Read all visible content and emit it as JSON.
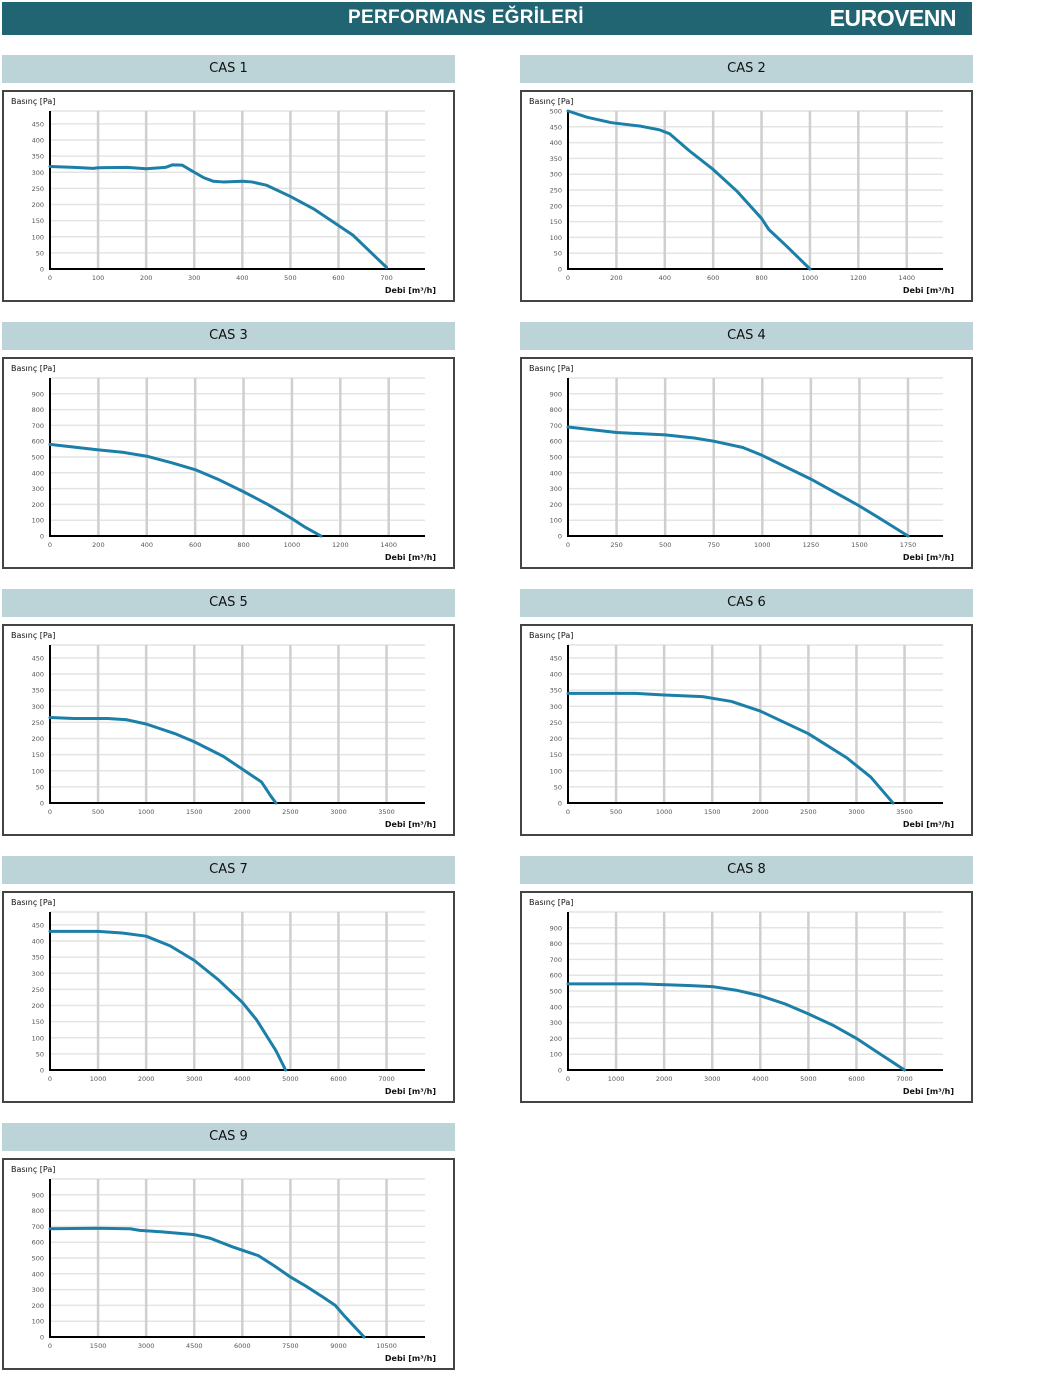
{
  "header": {
    "title": "PERFORMANS EĞRİLERİ",
    "logo": "EUROVENN",
    "bg_color": "#216573"
  },
  "curve_color": "#1b7fa8",
  "chart_data": [
    {
      "type": "line",
      "title": "CAS 1",
      "ylabel": "Basınç [Pa]",
      "xlabel": "Debi [m³/h]",
      "yticks": [
        0,
        50,
        100,
        150,
        200,
        250,
        300,
        350,
        400,
        450
      ],
      "ylim": [
        0,
        490
      ],
      "xticks": [
        0,
        100,
        200,
        300,
        400,
        500,
        600,
        700
      ],
      "xlim": [
        0,
        780
      ],
      "grid": true,
      "points": [
        [
          0,
          318
        ],
        [
          50,
          315
        ],
        [
          90,
          312
        ],
        [
          100,
          314
        ],
        [
          160,
          315
        ],
        [
          200,
          311
        ],
        [
          240,
          315
        ],
        [
          255,
          323
        ],
        [
          275,
          322
        ],
        [
          300,
          300
        ],
        [
          320,
          283
        ],
        [
          340,
          272
        ],
        [
          360,
          270
        ],
        [
          400,
          272
        ],
        [
          420,
          270
        ],
        [
          450,
          260
        ],
        [
          500,
          225
        ],
        [
          550,
          185
        ],
        [
          600,
          135
        ],
        [
          630,
          105
        ],
        [
          700,
          5
        ]
      ]
    },
    {
      "type": "line",
      "title": "CAS 2",
      "ylabel": "Basınç [Pa]",
      "xlabel": "Debi [m³/h]",
      "yticks": [
        0,
        50,
        100,
        150,
        200,
        250,
        300,
        350,
        400,
        450,
        500
      ],
      "ylim": [
        0,
        500
      ],
      "xticks": [
        0,
        200,
        400,
        600,
        800,
        1000,
        1200,
        1400
      ],
      "xlim": [
        0,
        1550
      ],
      "grid": true,
      "points": [
        [
          0,
          500
        ],
        [
          80,
          480
        ],
        [
          180,
          463
        ],
        [
          300,
          452
        ],
        [
          380,
          440
        ],
        [
          420,
          428
        ],
        [
          500,
          375
        ],
        [
          600,
          315
        ],
        [
          700,
          245
        ],
        [
          800,
          160
        ],
        [
          830,
          125
        ],
        [
          900,
          75
        ],
        [
          1000,
          0
        ]
      ]
    },
    {
      "type": "line",
      "title": "CAS 3",
      "ylabel": "Basınç [Pa]",
      "xlabel": "Debi [m³/h]",
      "yticks": [
        0,
        100,
        200,
        300,
        400,
        500,
        600,
        700,
        800,
        900
      ],
      "ylim": [
        0,
        1000
      ],
      "xticks": [
        0,
        200,
        400,
        600,
        800,
        1000,
        1200,
        1400
      ],
      "xlim": [
        0,
        1550
      ],
      "grid": true,
      "points": [
        [
          0,
          580
        ],
        [
          200,
          545
        ],
        [
          300,
          530
        ],
        [
          400,
          505
        ],
        [
          500,
          465
        ],
        [
          600,
          420
        ],
        [
          700,
          355
        ],
        [
          800,
          280
        ],
        [
          900,
          200
        ],
        [
          1000,
          110
        ],
        [
          1050,
          60
        ],
        [
          1120,
          0
        ]
      ]
    },
    {
      "type": "line",
      "title": "CAS 4",
      "ylabel": "Basınç [Pa]",
      "xlabel": "Debi [m³/h]",
      "yticks": [
        0,
        100,
        200,
        300,
        400,
        500,
        600,
        700,
        800,
        900
      ],
      "ylim": [
        0,
        1000
      ],
      "xticks": [
        0,
        250,
        500,
        750,
        1000,
        1250,
        1500,
        1750
      ],
      "xlim": [
        0,
        1930
      ],
      "grid": true,
      "points": [
        [
          0,
          690
        ],
        [
          250,
          655
        ],
        [
          500,
          640
        ],
        [
          650,
          620
        ],
        [
          750,
          600
        ],
        [
          900,
          560
        ],
        [
          1000,
          510
        ],
        [
          1250,
          360
        ],
        [
          1500,
          190
        ],
        [
          1600,
          115
        ],
        [
          1750,
          0
        ]
      ]
    },
    {
      "type": "line",
      "title": "CAS 5",
      "ylabel": "Basınç [Pa]",
      "xlabel": "Debi [m³/h]",
      "yticks": [
        0,
        50,
        100,
        150,
        200,
        250,
        300,
        350,
        400,
        450
      ],
      "ylim": [
        0,
        490
      ],
      "xticks": [
        0,
        500,
        1000,
        1500,
        2000,
        2500,
        3000,
        3500
      ],
      "xlim": [
        0,
        3900
      ],
      "grid": true,
      "points": [
        [
          0,
          265
        ],
        [
          250,
          262
        ],
        [
          600,
          262
        ],
        [
          800,
          258
        ],
        [
          1000,
          245
        ],
        [
          1300,
          215
        ],
        [
          1500,
          190
        ],
        [
          1800,
          145
        ],
        [
          2000,
          105
        ],
        [
          2200,
          65
        ],
        [
          2300,
          20
        ],
        [
          2350,
          0
        ]
      ]
    },
    {
      "type": "line",
      "title": "CAS 6",
      "ylabel": "Basınç [Pa]",
      "xlabel": "Debi [m³/h]",
      "yticks": [
        0,
        50,
        100,
        150,
        200,
        250,
        300,
        350,
        400,
        450
      ],
      "ylim": [
        0,
        490
      ],
      "xticks": [
        0,
        500,
        1000,
        1500,
        2000,
        2500,
        3000,
        3500
      ],
      "xlim": [
        0,
        3900
      ],
      "grid": true,
      "points": [
        [
          0,
          340
        ],
        [
          700,
          340
        ],
        [
          1000,
          335
        ],
        [
          1400,
          330
        ],
        [
          1700,
          315
        ],
        [
          2000,
          285
        ],
        [
          2500,
          215
        ],
        [
          2900,
          140
        ],
        [
          3150,
          80
        ],
        [
          3380,
          0
        ]
      ]
    },
    {
      "type": "line",
      "title": "CAS 7",
      "ylabel": "Basınç [Pa]",
      "xlabel": "Debi [m³/h]",
      "yticks": [
        0,
        50,
        100,
        150,
        200,
        250,
        300,
        350,
        400,
        450
      ],
      "ylim": [
        0,
        490
      ],
      "xticks": [
        0,
        1000,
        2000,
        3000,
        4000,
        5000,
        6000,
        7000
      ],
      "xlim": [
        0,
        7800
      ],
      "grid": true,
      "points": [
        [
          0,
          430
        ],
        [
          1000,
          430
        ],
        [
          1500,
          425
        ],
        [
          2000,
          415
        ],
        [
          2500,
          385
        ],
        [
          3000,
          340
        ],
        [
          3500,
          280
        ],
        [
          4000,
          210
        ],
        [
          4300,
          155
        ],
        [
          4700,
          60
        ],
        [
          4900,
          0
        ]
      ]
    },
    {
      "type": "line",
      "title": "CAS 8",
      "ylabel": "Basınç [Pa]",
      "xlabel": "Debi [m³/h]",
      "yticks": [
        0,
        100,
        200,
        300,
        400,
        500,
        600,
        700,
        800,
        900
      ],
      "ylim": [
        0,
        1000
      ],
      "xticks": [
        0,
        1000,
        2000,
        3000,
        4000,
        5000,
        6000,
        7000
      ],
      "xlim": [
        0,
        7800
      ],
      "grid": true,
      "points": [
        [
          0,
          545
        ],
        [
          1500,
          545
        ],
        [
          2500,
          535
        ],
        [
          3000,
          528
        ],
        [
          3500,
          505
        ],
        [
          4000,
          470
        ],
        [
          4500,
          420
        ],
        [
          5000,
          355
        ],
        [
          5500,
          285
        ],
        [
          6000,
          200
        ],
        [
          6500,
          100
        ],
        [
          7000,
          0
        ]
      ]
    },
    {
      "type": "line",
      "title": "CAS 9",
      "ylabel": "Basınç [Pa]",
      "xlabel": "Debi [m³/h]",
      "yticks": [
        0,
        100,
        200,
        300,
        400,
        500,
        600,
        700,
        800,
        900
      ],
      "ylim": [
        0,
        1000
      ],
      "xticks": [
        0,
        1500,
        3000,
        4500,
        6000,
        7500,
        9000,
        10500
      ],
      "xlim": [
        0,
        11700
      ],
      "grid": true,
      "points": [
        [
          0,
          685
        ],
        [
          1500,
          688
        ],
        [
          2500,
          685
        ],
        [
          2800,
          675
        ],
        [
          3500,
          665
        ],
        [
          4500,
          648
        ],
        [
          5000,
          625
        ],
        [
          5700,
          570
        ],
        [
          6500,
          515
        ],
        [
          7000,
          450
        ],
        [
          7500,
          380
        ],
        [
          8000,
          320
        ],
        [
          8500,
          255
        ],
        [
          8900,
          200
        ],
        [
          9200,
          130
        ],
        [
          9800,
          0
        ]
      ]
    }
  ]
}
